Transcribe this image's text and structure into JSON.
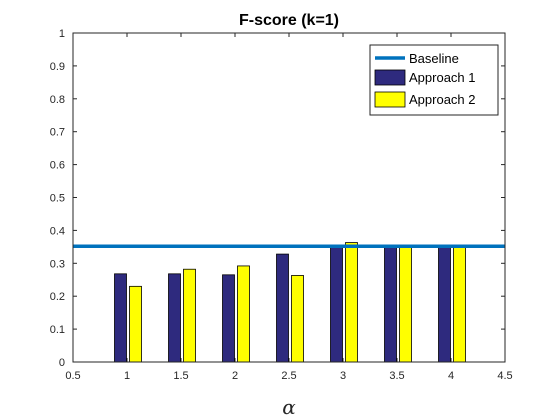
{
  "chart_data": {
    "type": "bar",
    "title": "F-score (k=1)",
    "xlabel": "α",
    "ylabel": "",
    "xlim": [
      0.5,
      4.5
    ],
    "ylim": [
      0,
      1
    ],
    "x_ticks": [
      "0.5",
      "1",
      "1.5",
      "2",
      "2.5",
      "3",
      "3.5",
      "4",
      "4.5"
    ],
    "y_ticks": [
      "0",
      "0.1",
      "0.2",
      "0.3",
      "0.4",
      "0.5",
      "0.6",
      "0.7",
      "0.8",
      "0.9",
      "1"
    ],
    "x": [
      1,
      1.5,
      2,
      2.5,
      3,
      3.5,
      4
    ],
    "series": [
      {
        "name": "Approach 1",
        "color": "#2e2a7e",
        "values": [
          0.268,
          0.268,
          0.265,
          0.328,
          0.355,
          0.355,
          0.355
        ]
      },
      {
        "name": "Approach 2",
        "color": "#ffff00",
        "values": [
          0.23,
          0.282,
          0.292,
          0.263,
          0.363,
          0.348,
          0.35
        ]
      }
    ],
    "baseline": {
      "name": "Baseline",
      "value": 0.352,
      "color": "#0072bd"
    },
    "legend": {
      "position": "top-right",
      "entries": [
        "Baseline",
        "Approach 1",
        "Approach 2"
      ]
    },
    "grid": false
  }
}
